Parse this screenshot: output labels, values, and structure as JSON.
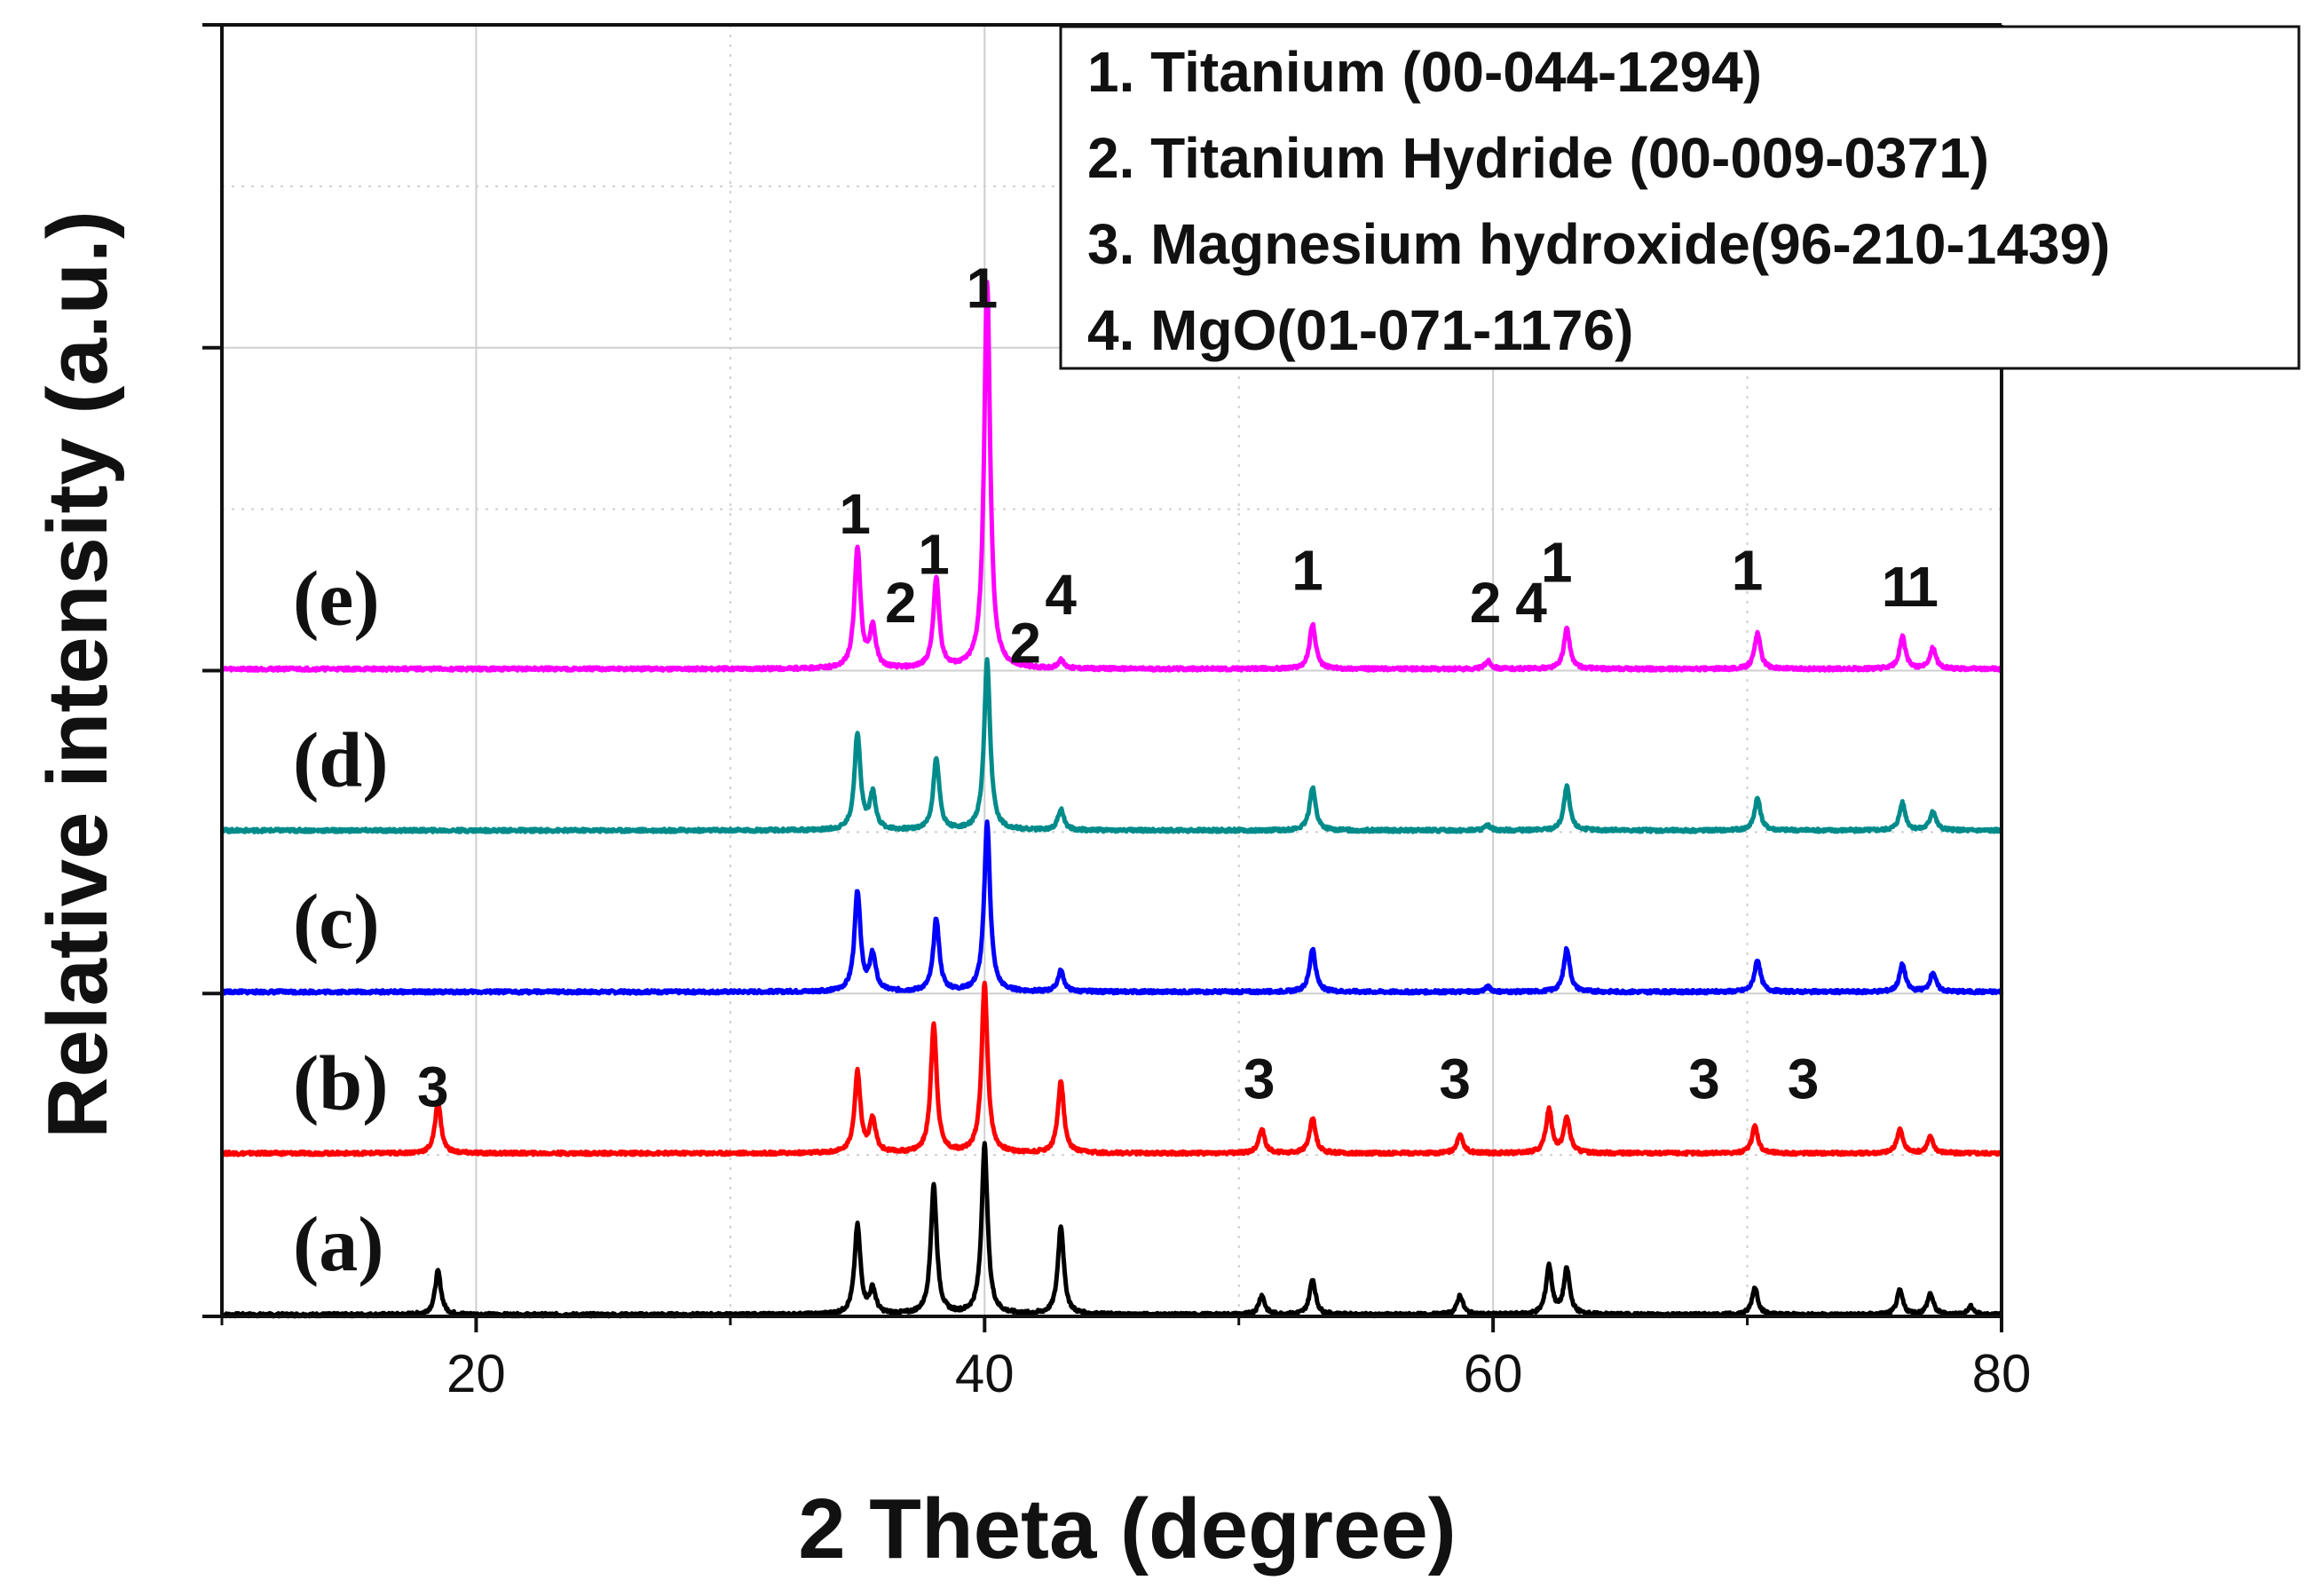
{
  "chart_data": {
    "type": "line",
    "title": "",
    "xlabel": "2 Theta (degree)",
    "ylabel": "Relative intensity (a.u.)",
    "xlim": [
      10,
      80
    ],
    "ylim": [
      0,
      8
    ],
    "xticks": [
      20,
      40,
      60,
      80
    ],
    "grid": true,
    "legend": {
      "position": "top-right",
      "entries": [
        "1. Titanium (00-044-1294)",
        "2. Titanium Hydride (00-009-0371)",
        "3. Magnesium hydroxide(96-210-1439)",
        "4. MgO(01-071-1176)"
      ]
    },
    "series": [
      {
        "name": "(a)",
        "color": "#000000",
        "baseline": 0.0,
        "peaks": [
          {
            "x": 18.5,
            "h": 0.27
          },
          {
            "x": 35.0,
            "h": 0.55
          },
          {
            "x": 35.6,
            "h": 0.15
          },
          {
            "x": 38.0,
            "h": 0.8
          },
          {
            "x": 40.0,
            "h": 1.05
          },
          {
            "x": 43.0,
            "h": 0.55
          },
          {
            "x": 50.9,
            "h": 0.12
          },
          {
            "x": 52.9,
            "h": 0.22
          },
          {
            "x": 58.7,
            "h": 0.12
          },
          {
            "x": 62.2,
            "h": 0.3
          },
          {
            "x": 62.9,
            "h": 0.28
          },
          {
            "x": 70.3,
            "h": 0.17
          },
          {
            "x": 76.0,
            "h": 0.15
          },
          {
            "x": 77.2,
            "h": 0.13
          },
          {
            "x": 78.8,
            "h": 0.05
          }
        ]
      },
      {
        "name": "(b)",
        "color": "#ff0000",
        "baseline": 1.0,
        "peaks": [
          {
            "x": 18.5,
            "h": 0.32
          },
          {
            "x": 35.0,
            "h": 0.5
          },
          {
            "x": 35.6,
            "h": 0.2
          },
          {
            "x": 38.0,
            "h": 0.8
          },
          {
            "x": 40.0,
            "h": 1.05
          },
          {
            "x": 43.0,
            "h": 0.45
          },
          {
            "x": 50.9,
            "h": 0.15
          },
          {
            "x": 52.9,
            "h": 0.22
          },
          {
            "x": 58.7,
            "h": 0.12
          },
          {
            "x": 62.2,
            "h": 0.27
          },
          {
            "x": 62.9,
            "h": 0.22
          },
          {
            "x": 70.3,
            "h": 0.17
          },
          {
            "x": 76.0,
            "h": 0.15
          },
          {
            "x": 77.2,
            "h": 0.1
          }
        ]
      },
      {
        "name": "(c)",
        "color": "#0000ff",
        "baseline": 2.0,
        "peaks": [
          {
            "x": 35.0,
            "h": 0.62
          },
          {
            "x": 35.6,
            "h": 0.22
          },
          {
            "x": 38.1,
            "h": 0.45
          },
          {
            "x": 40.1,
            "h": 1.05
          },
          {
            "x": 43.0,
            "h": 0.13
          },
          {
            "x": 52.9,
            "h": 0.27
          },
          {
            "x": 59.8,
            "h": 0.03
          },
          {
            "x": 62.9,
            "h": 0.27
          },
          {
            "x": 70.4,
            "h": 0.2
          },
          {
            "x": 76.1,
            "h": 0.17
          },
          {
            "x": 77.3,
            "h": 0.12
          }
        ]
      },
      {
        "name": "(d)",
        "color": "#008b8b",
        "baseline": 3.0,
        "peaks": [
          {
            "x": 35.0,
            "h": 0.6
          },
          {
            "x": 35.6,
            "h": 0.22
          },
          {
            "x": 38.1,
            "h": 0.45
          },
          {
            "x": 40.1,
            "h": 1.05
          },
          {
            "x": 43.0,
            "h": 0.13
          },
          {
            "x": 52.9,
            "h": 0.27
          },
          {
            "x": 59.8,
            "h": 0.03
          },
          {
            "x": 62.9,
            "h": 0.27
          },
          {
            "x": 70.4,
            "h": 0.2
          },
          {
            "x": 76.1,
            "h": 0.17
          },
          {
            "x": 77.3,
            "h": 0.12
          }
        ]
      },
      {
        "name": "(e)",
        "color": "#ff00ff",
        "baseline": 4.0,
        "peaks": [
          {
            "x": 35.0,
            "h": 0.75
          },
          {
            "x": 35.6,
            "h": 0.25
          },
          {
            "x": 38.1,
            "h": 0.55
          },
          {
            "x": 40.1,
            "h": 2.4
          },
          {
            "x": 43.0,
            "h": 0.05
          },
          {
            "x": 52.9,
            "h": 0.28
          },
          {
            "x": 59.8,
            "h": 0.05
          },
          {
            "x": 62.9,
            "h": 0.25
          },
          {
            "x": 70.4,
            "h": 0.22
          },
          {
            "x": 76.1,
            "h": 0.2
          },
          {
            "x": 77.3,
            "h": 0.13
          }
        ]
      }
    ],
    "annotations": [
      {
        "text": "1",
        "x": 39.9,
        "y": 6.25
      },
      {
        "text": "1",
        "x": 34.9,
        "y": 4.85
      },
      {
        "text": "1",
        "x": 38.0,
        "y": 4.6
      },
      {
        "text": "2",
        "x": 36.7,
        "y": 4.3
      },
      {
        "text": "2",
        "x": 41.6,
        "y": 4.05
      },
      {
        "text": "4",
        "x": 43.0,
        "y": 4.35
      },
      {
        "text": "1",
        "x": 52.7,
        "y": 4.5
      },
      {
        "text": "2",
        "x": 59.7,
        "y": 4.3
      },
      {
        "text": "4",
        "x": 61.5,
        "y": 4.3
      },
      {
        "text": "1",
        "x": 62.5,
        "y": 4.55
      },
      {
        "text": "1",
        "x": 70.0,
        "y": 4.5
      },
      {
        "text": "1",
        "x": 75.9,
        "y": 4.4
      },
      {
        "text": "1",
        "x": 76.9,
        "y": 4.4
      },
      {
        "text": "3",
        "x": 18.3,
        "y": 1.3
      },
      {
        "text": "3",
        "x": 50.8,
        "y": 1.35
      },
      {
        "text": "3",
        "x": 58.5,
        "y": 1.35
      },
      {
        "text": "3",
        "x": 68.3,
        "y": 1.35
      },
      {
        "text": "3",
        "x": 72.2,
        "y": 1.35
      }
    ]
  }
}
